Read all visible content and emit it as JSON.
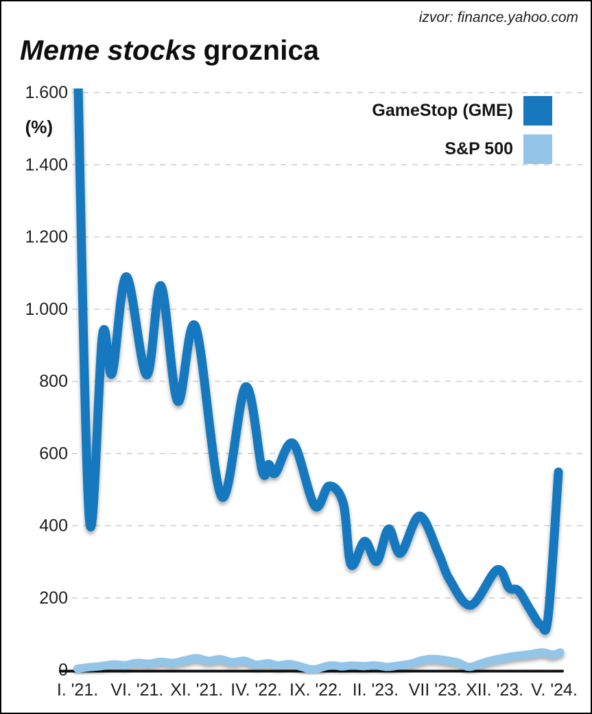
{
  "header": {
    "source": "izvor: finance.yahoo.com",
    "title_italic": "Meme stocks",
    "title_regular": "groznica"
  },
  "chart_data": {
    "type": "line",
    "title": "Meme stocks groznica",
    "unit_label": "(%)",
    "ylim": [
      0,
      1600
    ],
    "ytick_values": [
      0,
      200,
      400,
      600,
      800,
      1000,
      1200,
      1400,
      1600
    ],
    "ytick_labels": [
      "0",
      "200",
      "400",
      "600",
      "800",
      "1.000",
      "1.200",
      "1.400",
      "1.600"
    ],
    "x_tick_positions": [
      0,
      5,
      10,
      15,
      20,
      25,
      30,
      35,
      40
    ],
    "x_tick_labels": [
      "I. '21.",
      "VI. '21.",
      "XI. '21.",
      "IV. '22.",
      "IX. '22.",
      "II. '23.",
      "VII '23.",
      "XII. '23.",
      "V. '24."
    ],
    "x_axis_note": "months, 0 = I. '21. (Jan 2021) through 40 = V. '24. (May 2024)",
    "grid": "dashed horizontal gridlines at each 200",
    "legend_position": "top-right inside plot",
    "axis_color": "#111111",
    "grid_color": "#cbcbcb",
    "series": [
      {
        "name": "GameStop (GME)",
        "color": "#1878be",
        "stroke_width": 13,
        "points": [
          [
            0,
            1700
          ],
          [
            1.0,
            415
          ],
          [
            2.1,
            930
          ],
          [
            2.9,
            822
          ],
          [
            4.1,
            1090
          ],
          [
            5.8,
            818
          ],
          [
            7.0,
            1065
          ],
          [
            8.4,
            745
          ],
          [
            9.9,
            952
          ],
          [
            12.1,
            480
          ],
          [
            14.1,
            785
          ],
          [
            15.5,
            551
          ],
          [
            16.05,
            570
          ],
          [
            16.6,
            546
          ],
          [
            18.1,
            628
          ],
          [
            19.9,
            455
          ],
          [
            21.1,
            510
          ],
          [
            22.3,
            462
          ],
          [
            22.95,
            292
          ],
          [
            24.1,
            357
          ],
          [
            25.1,
            301
          ],
          [
            26.1,
            391
          ],
          [
            27.1,
            324
          ],
          [
            28.7,
            427
          ],
          [
            30.3,
            322
          ],
          [
            31.2,
            252
          ],
          [
            33.0,
            180
          ],
          [
            35.2,
            278
          ],
          [
            36.2,
            228
          ],
          [
            37.0,
            220
          ],
          [
            38.0,
            166
          ],
          [
            38.9,
            124
          ],
          [
            39.5,
            152
          ],
          [
            40.35,
            549
          ]
        ]
      },
      {
        "name": "S&P 500",
        "color": "#92c5e8",
        "stroke_width": 12,
        "points": [
          [
            0,
            4
          ],
          [
            1,
            8
          ],
          [
            2,
            11
          ],
          [
            3,
            16
          ],
          [
            4,
            14
          ],
          [
            5,
            20
          ],
          [
            6,
            18
          ],
          [
            7,
            23
          ],
          [
            8,
            20
          ],
          [
            9,
            27
          ],
          [
            10,
            33
          ],
          [
            11,
            26
          ],
          [
            12,
            30
          ],
          [
            13,
            22
          ],
          [
            14,
            26
          ],
          [
            15,
            15
          ],
          [
            16,
            19
          ],
          [
            16.8,
            13
          ],
          [
            17.8,
            17
          ],
          [
            18.8,
            9
          ],
          [
            19.8,
            2
          ],
          [
            21.2,
            13
          ],
          [
            22.2,
            10
          ],
          [
            23,
            13
          ],
          [
            24,
            11
          ],
          [
            25,
            13
          ],
          [
            26,
            9
          ],
          [
            27,
            13
          ],
          [
            28,
            18
          ],
          [
            29,
            28
          ],
          [
            30,
            31
          ],
          [
            31.8,
            22
          ],
          [
            32.9,
            9
          ],
          [
            34.5,
            25
          ],
          [
            36.5,
            38
          ],
          [
            38,
            44
          ],
          [
            39,
            49
          ],
          [
            39.9,
            43
          ],
          [
            40.5,
            49
          ]
        ]
      }
    ]
  }
}
